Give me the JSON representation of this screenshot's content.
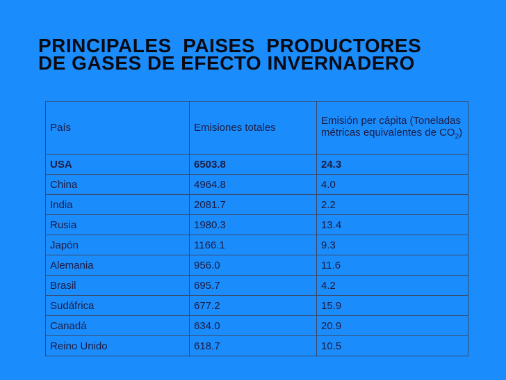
{
  "title_lines": [
    "PRINCIPALES  PAISES  PRODUCTORES",
    "DE GASES DE EFECTO INVERNADERO"
  ],
  "table": {
    "header": [
      "País",
      "Emisiones totales",
      {
        "text": "Emisión per cápita (Toneladas métricas equivalentes de CO",
        "subscript": "2",
        "suffix": ")"
      }
    ],
    "rows": [
      [
        "USA",
        "6503.8",
        "24.3"
      ],
      [
        "China",
        "4964.8",
        "4.0"
      ],
      [
        "India",
        "2081.7",
        "2.2"
      ],
      [
        "Rusia",
        "1980.3",
        "13.4"
      ],
      [
        "Japón",
        "1166.1",
        "9.3"
      ],
      [
        "Alemania",
        "956.0",
        "11.6"
      ],
      [
        "Brasil",
        "695.7",
        "4.2"
      ],
      [
        "Sudáfrica",
        "677.2",
        "15.9"
      ],
      [
        "Canadá",
        "634.0",
        "20.9"
      ],
      [
        "Reino Unido",
        "618.7",
        "10.5"
      ]
    ]
  }
}
